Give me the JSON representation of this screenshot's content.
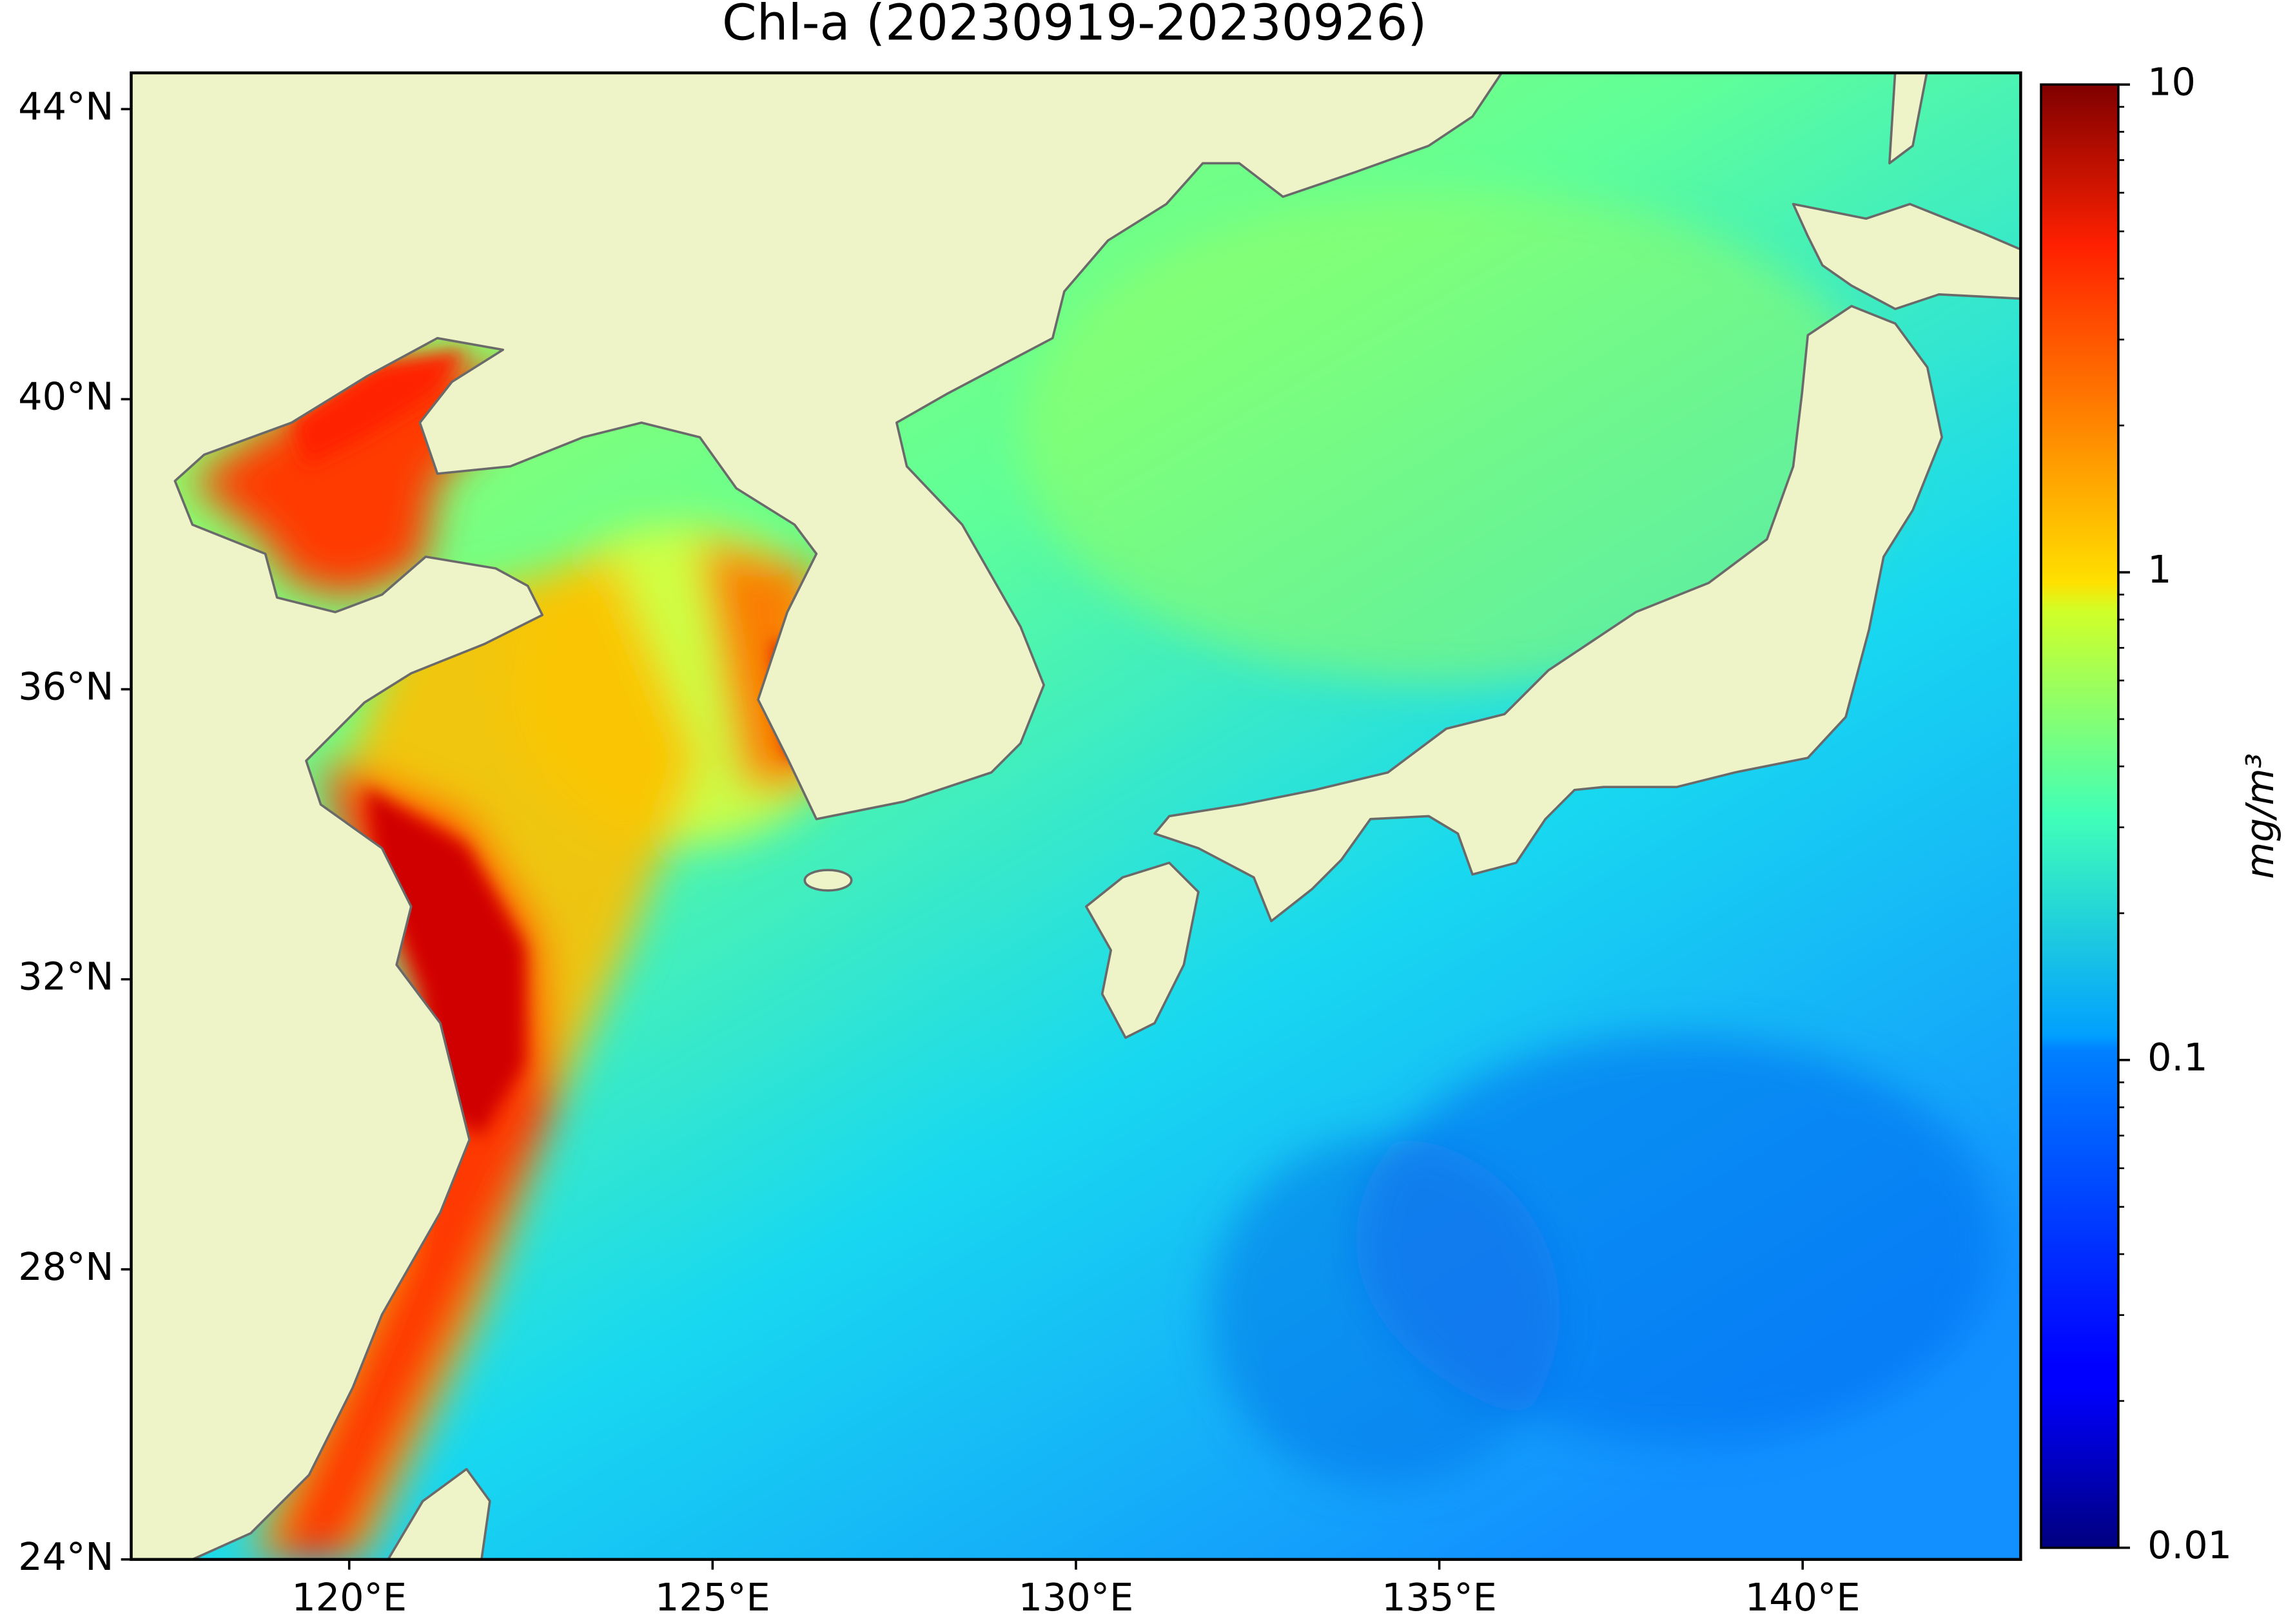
{
  "title": "Chl-a (20230919-20230926)",
  "type": "map",
  "map": {
    "xlim": [
      117,
      143
    ],
    "ylim": [
      24,
      44.5
    ],
    "xticks": [
      {
        "value": 120,
        "label": "120°E"
      },
      {
        "value": 125,
        "label": "125°E"
      },
      {
        "value": 130,
        "label": "130°E"
      },
      {
        "value": 135,
        "label": "135°E"
      },
      {
        "value": 140,
        "label": "140°E"
      }
    ],
    "yticks": [
      {
        "value": 24,
        "label": "24°N"
      },
      {
        "value": 28,
        "label": "28°N"
      },
      {
        "value": 32,
        "label": "32°N"
      },
      {
        "value": 36,
        "label": "36°N"
      },
      {
        "value": 40,
        "label": "40°N"
      },
      {
        "value": 44,
        "label": "44°N"
      }
    ]
  },
  "colorbar": {
    "label": "mg/m³",
    "colormap": "jet",
    "scale": "log",
    "lim": [
      0.01,
      10
    ],
    "ticks": [
      0.01,
      0.1,
      1,
      10
    ]
  }
}
